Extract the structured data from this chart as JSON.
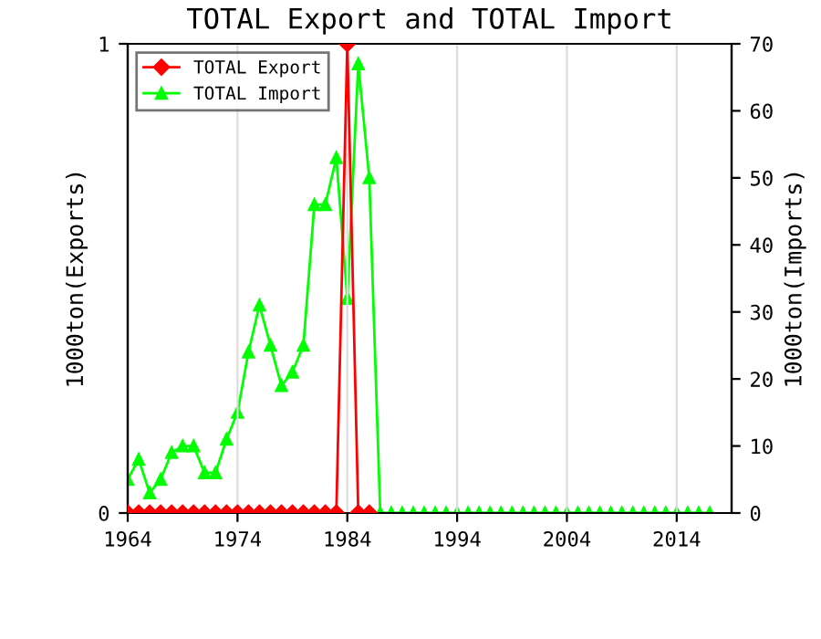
{
  "chart_data": {
    "type": "line",
    "title": "TOTAL Export and TOTAL Import",
    "ylabel": "1000ton(Exports)",
    "y2label": "1000ton(Imports)",
    "x": [
      1964,
      1965,
      1966,
      1967,
      1968,
      1969,
      1970,
      1971,
      1972,
      1973,
      1974,
      1975,
      1976,
      1977,
      1978,
      1979,
      1980,
      1981,
      1982,
      1983,
      1984,
      1985,
      1986,
      1987,
      1988,
      1989,
      1990,
      1991,
      1992,
      1993,
      1994,
      1995,
      1996,
      1997,
      1998,
      1999,
      2000,
      2001,
      2002,
      2003,
      2004,
      2005,
      2006,
      2007,
      2008,
      2009,
      2010,
      2011,
      2012,
      2013,
      2014,
      2015,
      2016,
      2017
    ],
    "series": [
      {
        "name": "TOTAL Export",
        "color": "#ff0000",
        "marker": "diamond",
        "values": [
          0,
          0,
          0,
          0,
          0,
          0,
          0,
          0,
          0,
          0,
          0,
          0,
          0,
          0,
          0,
          0,
          0,
          0,
          0,
          0,
          1,
          0,
          0,
          null,
          null,
          null,
          null,
          null,
          null,
          null,
          null,
          null,
          null,
          null,
          null,
          null,
          null,
          null,
          null,
          null,
          null,
          null,
          null,
          null,
          null,
          null,
          null,
          null,
          null,
          null,
          null,
          null,
          null,
          null
        ]
      },
      {
        "name": "TOTAL Import",
        "color": "#00ff00",
        "axis": "y2",
        "marker": "triangle",
        "values": [
          5,
          8,
          3,
          5,
          9,
          10,
          10,
          6,
          6,
          11,
          15,
          24,
          31,
          25,
          19,
          21,
          25,
          46,
          46,
          53,
          32,
          67,
          50,
          0,
          0,
          0,
          0,
          0,
          0,
          0,
          0,
          0,
          0,
          0,
          0,
          0,
          0,
          0,
          0,
          0,
          0,
          0,
          0,
          0,
          0,
          0,
          0,
          0,
          0,
          0,
          0,
          0,
          0,
          0
        ]
      }
    ],
    "xlim": [
      1964,
      2019
    ],
    "xticks": [
      1964,
      1974,
      1984,
      1994,
      2004,
      2014
    ],
    "ylim": [
      0,
      1
    ],
    "yticks": [
      0,
      1
    ],
    "y2lim": [
      0,
      70
    ],
    "y2ticks": [
      0,
      10,
      20,
      30,
      40,
      50,
      60,
      70
    ],
    "grid": "x",
    "legend": "top left",
    "line_style": "solid"
  }
}
